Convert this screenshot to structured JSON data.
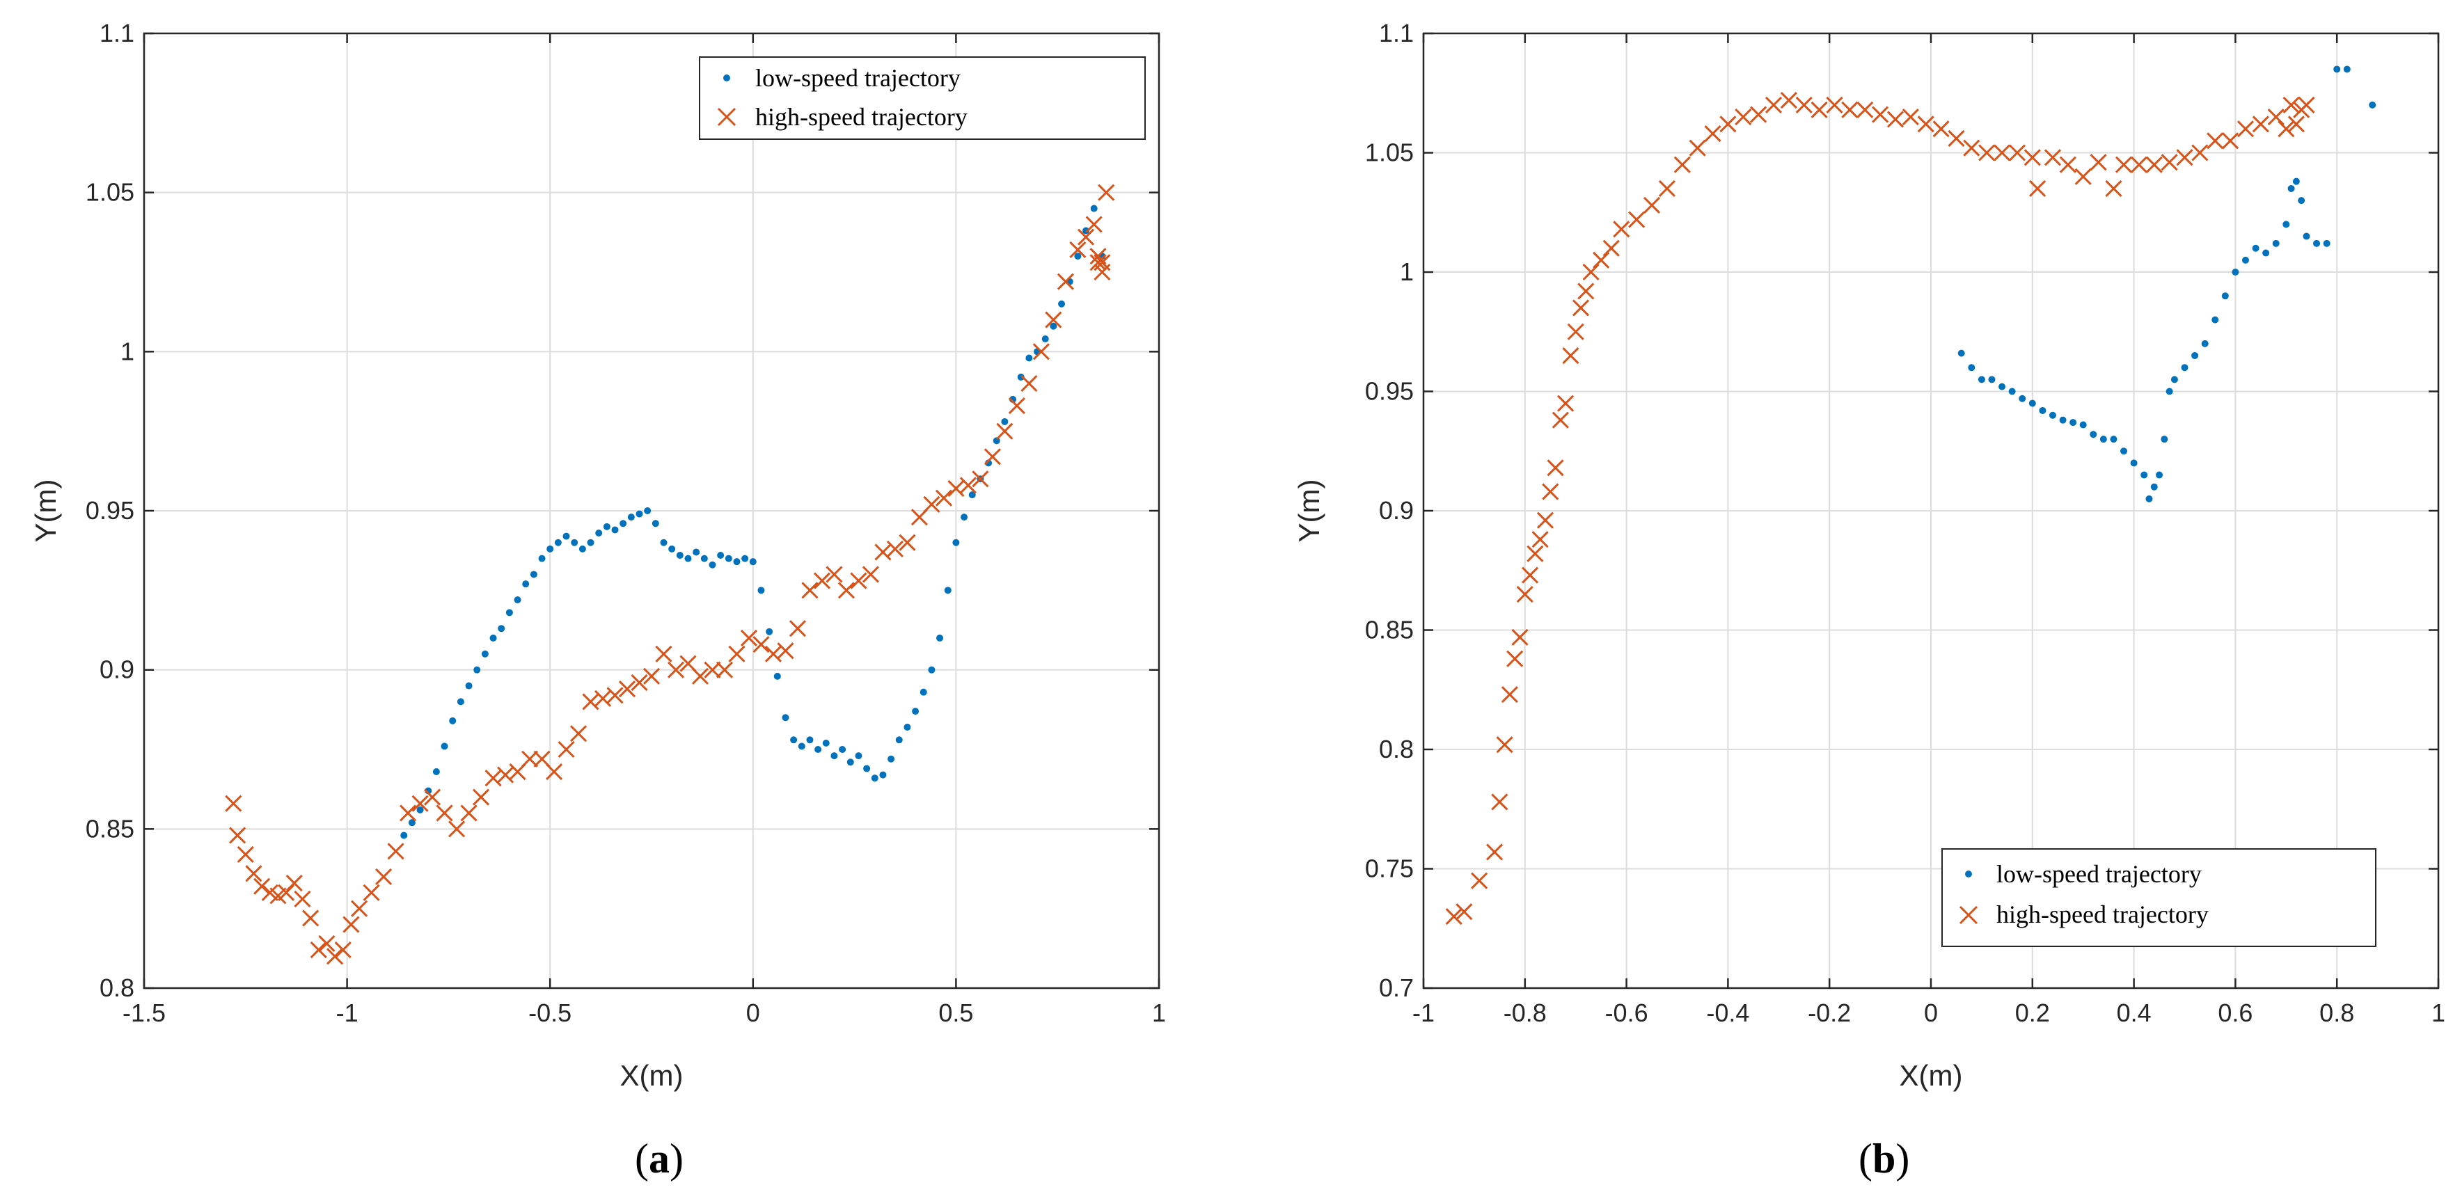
{
  "chart_data": [
    {
      "type": "scatter",
      "panel_label": "a",
      "xlabel": "X(m)",
      "ylabel": "Y(m)",
      "xlim": [
        -1.5,
        1
      ],
      "ylim": [
        0.8,
        1.1
      ],
      "xticks": [
        -1.5,
        -1,
        -0.5,
        0,
        0.5,
        1
      ],
      "xtick_labels": [
        "-1.5",
        "-1",
        "-0.5",
        "0",
        "0.5",
        "1"
      ],
      "yticks": [
        0.8,
        0.85,
        0.9,
        0.95,
        1,
        1.05,
        1.1
      ],
      "ytick_labels": [
        "0.8",
        "0.85",
        "0.9",
        "0.95",
        "1",
        "1.05",
        "1.1"
      ],
      "grid": true,
      "legend_position": "top-right",
      "series": [
        {
          "name": "low-speed trajectory",
          "marker": "dot",
          "color": "#0072BD",
          "x": [
            -0.86,
            -0.84,
            -0.82,
            -0.8,
            -0.78,
            -0.76,
            -0.74,
            -0.72,
            -0.7,
            -0.68,
            -0.66,
            -0.64,
            -0.62,
            -0.6,
            -0.58,
            -0.56,
            -0.54,
            -0.52,
            -0.5,
            -0.48,
            -0.46,
            -0.44,
            -0.42,
            -0.4,
            -0.38,
            -0.36,
            -0.34,
            -0.32,
            -0.3,
            -0.28,
            -0.26,
            -0.24,
            -0.22,
            -0.2,
            -0.18,
            -0.16,
            -0.14,
            -0.12,
            -0.1,
            -0.08,
            -0.06,
            -0.04,
            -0.02,
            0.0,
            0.02,
            0.04,
            0.06,
            0.08,
            0.1,
            0.12,
            0.14,
            0.16,
            0.18,
            0.2,
            0.22,
            0.24,
            0.26,
            0.28,
            0.3,
            0.32,
            0.34,
            0.36,
            0.38,
            0.4,
            0.42,
            0.44,
            0.46,
            0.48,
            0.5,
            0.52,
            0.54,
            0.56,
            0.58,
            0.6,
            0.62,
            0.64,
            0.66,
            0.68,
            0.7,
            0.72,
            0.74,
            0.76,
            0.78,
            0.8,
            0.82,
            0.84,
            0.86
          ],
          "y": [
            0.848,
            0.852,
            0.856,
            0.862,
            0.868,
            0.876,
            0.884,
            0.89,
            0.895,
            0.9,
            0.905,
            0.91,
            0.913,
            0.918,
            0.922,
            0.927,
            0.93,
            0.935,
            0.938,
            0.94,
            0.942,
            0.94,
            0.938,
            0.94,
            0.943,
            0.945,
            0.944,
            0.946,
            0.948,
            0.949,
            0.95,
            0.946,
            0.94,
            0.938,
            0.936,
            0.935,
            0.937,
            0.935,
            0.933,
            0.936,
            0.935,
            0.934,
            0.935,
            0.934,
            0.925,
            0.912,
            0.898,
            0.885,
            0.878,
            0.876,
            0.878,
            0.875,
            0.877,
            0.873,
            0.875,
            0.871,
            0.873,
            0.869,
            0.866,
            0.867,
            0.872,
            0.878,
            0.882,
            0.887,
            0.893,
            0.9,
            0.91,
            0.925,
            0.94,
            0.948,
            0.955,
            0.96,
            0.965,
            0.972,
            0.978,
            0.985,
            0.992,
            0.998,
            1.0,
            1.004,
            1.008,
            1.015,
            1.022,
            1.03,
            1.038,
            1.045,
            1.03
          ]
        },
        {
          "name": "high-speed trajectory",
          "marker": "x",
          "color": "#D95319",
          "x": [
            -1.28,
            -1.27,
            -1.25,
            -1.23,
            -1.21,
            -1.19,
            -1.17,
            -1.15,
            -1.13,
            -1.11,
            -1.09,
            -1.07,
            -1.05,
            -1.03,
            -1.01,
            -0.99,
            -0.97,
            -0.94,
            -0.91,
            -0.88,
            -0.85,
            -0.82,
            -0.79,
            -0.76,
            -0.73,
            -0.7,
            -0.67,
            -0.64,
            -0.61,
            -0.58,
            -0.55,
            -0.52,
            -0.49,
            -0.46,
            -0.43,
            -0.4,
            -0.37,
            -0.34,
            -0.31,
            -0.28,
            -0.25,
            -0.22,
            -0.19,
            -0.16,
            -0.13,
            -0.1,
            -0.07,
            -0.04,
            -0.01,
            0.02,
            0.05,
            0.08,
            0.11,
            0.14,
            0.17,
            0.2,
            0.23,
            0.26,
            0.29,
            0.32,
            0.35,
            0.38,
            0.41,
            0.44,
            0.47,
            0.5,
            0.53,
            0.56,
            0.59,
            0.62,
            0.65,
            0.68,
            0.71,
            0.74,
            0.77,
            0.8,
            0.82,
            0.84,
            0.85,
            0.86,
            0.86,
            0.85,
            0.87
          ],
          "y": [
            0.858,
            0.848,
            0.842,
            0.836,
            0.832,
            0.83,
            0.829,
            0.83,
            0.833,
            0.828,
            0.822,
            0.812,
            0.814,
            0.81,
            0.812,
            0.82,
            0.825,
            0.83,
            0.835,
            0.843,
            0.855,
            0.858,
            0.86,
            0.855,
            0.85,
            0.855,
            0.86,
            0.866,
            0.867,
            0.868,
            0.872,
            0.872,
            0.868,
            0.875,
            0.88,
            0.89,
            0.891,
            0.892,
            0.894,
            0.896,
            0.898,
            0.905,
            0.9,
            0.902,
            0.898,
            0.9,
            0.9,
            0.905,
            0.91,
            0.908,
            0.905,
            0.906,
            0.913,
            0.925,
            0.928,
            0.93,
            0.925,
            0.928,
            0.93,
            0.937,
            0.938,
            0.94,
            0.948,
            0.952,
            0.954,
            0.957,
            0.958,
            0.96,
            0.967,
            0.975,
            0.983,
            0.99,
            1.0,
            1.01,
            1.022,
            1.032,
            1.036,
            1.04,
            1.03,
            1.025,
            1.028,
            1.028,
            1.05
          ]
        }
      ]
    },
    {
      "type": "scatter",
      "panel_label": "b",
      "xlabel": "X(m)",
      "ylabel": "Y(m)",
      "xlim": [
        -1,
        1
      ],
      "ylim": [
        0.7,
        1.1
      ],
      "xticks": [
        -1,
        -0.8,
        -0.6,
        -0.4,
        -0.2,
        0,
        0.2,
        0.4,
        0.6,
        0.8,
        1
      ],
      "xtick_labels": [
        "-1",
        "-0.8",
        "-0.6",
        "-0.4",
        "-0.2",
        "0",
        "0.2",
        "0.4",
        "0.6",
        "0.8",
        "1"
      ],
      "yticks": [
        0.7,
        0.75,
        0.8,
        0.85,
        0.9,
        0.95,
        1,
        1.05,
        1.1
      ],
      "ytick_labels": [
        "0.7",
        "0.75",
        "0.8",
        "0.85",
        "0.9",
        "0.95",
        "1",
        "1.05",
        "1.1"
      ],
      "grid": true,
      "legend_position": "bottom-right",
      "series": [
        {
          "name": "low-speed trajectory",
          "marker": "dot",
          "color": "#0072BD",
          "x": [
            0.06,
            0.08,
            0.1,
            0.12,
            0.14,
            0.16,
            0.18,
            0.2,
            0.22,
            0.24,
            0.26,
            0.28,
            0.3,
            0.32,
            0.34,
            0.36,
            0.38,
            0.4,
            0.42,
            0.43,
            0.44,
            0.45,
            0.46,
            0.47,
            0.48,
            0.5,
            0.52,
            0.54,
            0.56,
            0.58,
            0.6,
            0.62,
            0.64,
            0.66,
            0.68,
            0.7,
            0.71,
            0.72,
            0.73,
            0.74,
            0.76,
            0.78,
            0.8,
            0.82,
            0.87
          ],
          "y": [
            0.966,
            0.96,
            0.955,
            0.955,
            0.952,
            0.95,
            0.947,
            0.945,
            0.942,
            0.94,
            0.938,
            0.937,
            0.936,
            0.932,
            0.93,
            0.93,
            0.925,
            0.92,
            0.915,
            0.905,
            0.91,
            0.915,
            0.93,
            0.95,
            0.955,
            0.96,
            0.965,
            0.97,
            0.98,
            0.99,
            1.0,
            1.005,
            1.01,
            1.008,
            1.012,
            1.02,
            1.035,
            1.038,
            1.03,
            1.015,
            1.012,
            1.012,
            1.085,
            1.085,
            1.07
          ]
        },
        {
          "name": "high-speed trajectory",
          "marker": "x",
          "color": "#D95319",
          "x": [
            -0.94,
            -0.92,
            -0.89,
            -0.86,
            -0.85,
            -0.84,
            -0.83,
            -0.82,
            -0.81,
            -0.8,
            -0.79,
            -0.78,
            -0.77,
            -0.76,
            -0.75,
            -0.74,
            -0.73,
            -0.72,
            -0.71,
            -0.7,
            -0.69,
            -0.68,
            -0.67,
            -0.65,
            -0.63,
            -0.61,
            -0.58,
            -0.55,
            -0.52,
            -0.49,
            -0.46,
            -0.43,
            -0.4,
            -0.37,
            -0.34,
            -0.31,
            -0.28,
            -0.25,
            -0.22,
            -0.19,
            -0.16,
            -0.13,
            -0.1,
            -0.07,
            -0.04,
            -0.01,
            0.02,
            0.05,
            0.08,
            0.11,
            0.14,
            0.17,
            0.2,
            0.21,
            0.24,
            0.27,
            0.3,
            0.33,
            0.36,
            0.38,
            0.41,
            0.44,
            0.47,
            0.5,
            0.53,
            0.56,
            0.59,
            0.62,
            0.65,
            0.68,
            0.7,
            0.71,
            0.72,
            0.73,
            0.74
          ],
          "y": [
            0.73,
            0.732,
            0.745,
            0.757,
            0.778,
            0.802,
            0.823,
            0.838,
            0.847,
            0.865,
            0.873,
            0.882,
            0.888,
            0.896,
            0.908,
            0.918,
            0.938,
            0.945,
            0.965,
            0.975,
            0.985,
            0.992,
            1.0,
            1.005,
            1.01,
            1.018,
            1.022,
            1.028,
            1.035,
            1.045,
            1.052,
            1.058,
            1.062,
            1.065,
            1.066,
            1.07,
            1.072,
            1.07,
            1.068,
            1.07,
            1.068,
            1.068,
            1.066,
            1.064,
            1.065,
            1.062,
            1.06,
            1.056,
            1.052,
            1.05,
            1.05,
            1.05,
            1.048,
            1.035,
            1.048,
            1.045,
            1.04,
            1.046,
            1.035,
            1.045,
            1.045,
            1.045,
            1.046,
            1.048,
            1.05,
            1.055,
            1.055,
            1.06,
            1.062,
            1.065,
            1.06,
            1.07,
            1.062,
            1.068,
            1.07
          ]
        }
      ]
    }
  ]
}
